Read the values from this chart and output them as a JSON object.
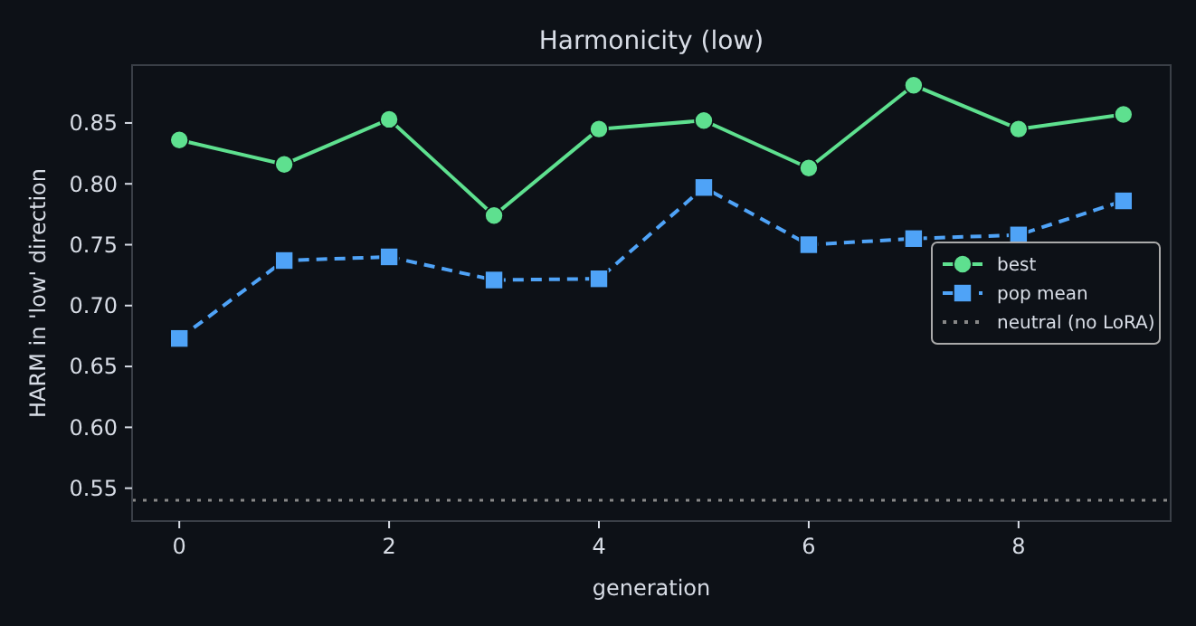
{
  "chart_data": {
    "type": "line",
    "title": "Harmonicity (low)",
    "xlabel": "generation",
    "ylabel": "HARM in 'low' direction",
    "x": [
      0,
      1,
      2,
      3,
      4,
      5,
      6,
      7,
      8,
      9
    ],
    "series": [
      {
        "name": "best",
        "color": "#5ee08f",
        "values": [
          0.836,
          0.816,
          0.853,
          0.774,
          0.845,
          0.852,
          0.813,
          0.881,
          0.845,
          0.857
        ],
        "marker": "circle",
        "line_style": "solid"
      },
      {
        "name": "pop mean",
        "color": "#4fa3f7",
        "values": [
          0.673,
          0.737,
          0.74,
          0.721,
          0.722,
          0.797,
          0.75,
          0.755,
          0.758,
          0.786
        ],
        "marker": "square",
        "line_style": "dashed"
      }
    ],
    "ref_lines": [
      {
        "axis": "y",
        "value": 0.54,
        "label": "neutral (no LoRA)",
        "color": "#888888",
        "line_style": "dotted"
      }
    ],
    "xlim": [
      -0.45,
      9.45
    ],
    "ylim": [
      0.523,
      0.8975
    ],
    "xticks": [
      0,
      2,
      4,
      6,
      8
    ],
    "yticks": [
      {
        "value": 0.55,
        "label": "0.55"
      },
      {
        "value": 0.6,
        "label": "0.60"
      },
      {
        "value": 0.65,
        "label": "0.65"
      },
      {
        "value": 0.7,
        "label": "0.70"
      },
      {
        "value": 0.75,
        "label": "0.75"
      },
      {
        "value": 0.8,
        "label": "0.80"
      },
      {
        "value": 0.85,
        "label": "0.85"
      }
    ],
    "grid": false,
    "legend": "right"
  }
}
